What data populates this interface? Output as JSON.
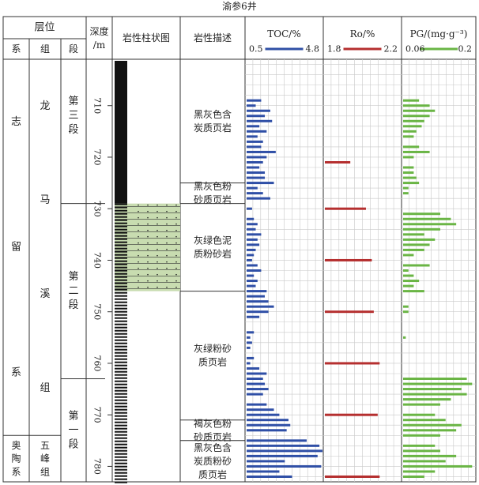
{
  "well_name": "渝参6井",
  "headers": {
    "strata": "层位",
    "system": "系",
    "formation": "组",
    "member": "段",
    "depth": "深度",
    "depth_unit": "/m",
    "lith_column": "岩性柱状图",
    "lith_desc": "岩性描述"
  },
  "strata": {
    "systems": [
      {
        "chars": [
          "志",
          "留",
          "系"
        ],
        "top": 701,
        "bottom": 774
      },
      {
        "chars": [
          "奥",
          "陶",
          "系"
        ],
        "top": 774,
        "bottom": 783
      }
    ],
    "formations": [
      {
        "chars": [
          "龙",
          "马",
          "溪",
          "组"
        ],
        "top": 701,
        "bottom": 774
      },
      {
        "chars": [
          "五",
          "峰",
          "组"
        ],
        "top": 774,
        "bottom": 783
      }
    ],
    "members": [
      {
        "chars": [
          "第",
          "三",
          "段"
        ],
        "top": 701,
        "bottom": 729
      },
      {
        "chars": [
          "第",
          "二",
          "段"
        ],
        "top": 729,
        "bottom": 763
      },
      {
        "chars": [
          "第",
          "一",
          "段"
        ],
        "top": 763,
        "bottom": 783
      }
    ]
  },
  "lithology": [
    {
      "lines": [
        "黑灰色含",
        "炭质页岩"
      ],
      "top": 701,
      "bottom": 725,
      "fill": "#ffffff"
    },
    {
      "lines": [
        "黑灰色粉",
        "砂质页岩"
      ],
      "top": 725,
      "bottom": 729,
      "fill": "#ffffff"
    },
    {
      "lines": [
        "灰绿色泥",
        "质粉砂岩"
      ],
      "top": 729,
      "bottom": 746,
      "fill": "#c8dcb0"
    },
    {
      "lines": [
        "灰绿粉砂",
        "质页岩"
      ],
      "top": 746,
      "bottom": 771,
      "fill": "#ffffff"
    },
    {
      "lines": [
        "褐灰色粉",
        "砂质页岩"
      ],
      "top": 771,
      "bottom": 775,
      "fill": "#ffffff"
    },
    {
      "lines": [
        "黑灰色含",
        "炭质粉砂",
        "质页岩"
      ],
      "top": 775,
      "bottom": 783,
      "fill": "#ffffff"
    }
  ],
  "chart_data": {
    "type": "bar",
    "y_axis": {
      "label": "深度/m",
      "ylim": [
        701,
        783
      ],
      "ticks": [
        710,
        720,
        730,
        740,
        750,
        760,
        770,
        780
      ],
      "inverted": true
    },
    "series": [
      {
        "name": "TOC/%",
        "color": "#2f4fa6",
        "xlim": [
          0.5,
          4.8
        ],
        "points": [
          {
            "depth": 709,
            "value": 1.3
          },
          {
            "depth": 710,
            "value": 1.0
          },
          {
            "depth": 711,
            "value": 1.8
          },
          {
            "depth": 712,
            "value": 1.5
          },
          {
            "depth": 713,
            "value": 1.9
          },
          {
            "depth": 714,
            "value": 1.2
          },
          {
            "depth": 715,
            "value": 1.6
          },
          {
            "depth": 716,
            "value": 1.1
          },
          {
            "depth": 717,
            "value": 1.4
          },
          {
            "depth": 718,
            "value": 1.3
          },
          {
            "depth": 719,
            "value": 2.1
          },
          {
            "depth": 720,
            "value": 1.6
          },
          {
            "depth": 721,
            "value": 1.4
          },
          {
            "depth": 722,
            "value": 1.2
          },
          {
            "depth": 723,
            "value": 1.5
          },
          {
            "depth": 724,
            "value": 1.5
          },
          {
            "depth": 725,
            "value": 2.0
          },
          {
            "depth": 726,
            "value": 1.1
          },
          {
            "depth": 727,
            "value": 1.4
          },
          {
            "depth": 728,
            "value": 1.8
          },
          {
            "depth": 730,
            "value": 0.8
          },
          {
            "depth": 732,
            "value": 0.9
          },
          {
            "depth": 733,
            "value": 1.1
          },
          {
            "depth": 734,
            "value": 1.0
          },
          {
            "depth": 735,
            "value": 1.3
          },
          {
            "depth": 736,
            "value": 1.1
          },
          {
            "depth": 737,
            "value": 1.2
          },
          {
            "depth": 738,
            "value": 1.0
          },
          {
            "depth": 739,
            "value": 0.9
          },
          {
            "depth": 740,
            "value": 0.8
          },
          {
            "depth": 741,
            "value": 1.1
          },
          {
            "depth": 742,
            "value": 1.3
          },
          {
            "depth": 743,
            "value": 0.9
          },
          {
            "depth": 744,
            "value": 1.1
          },
          {
            "depth": 745,
            "value": 1.0
          },
          {
            "depth": 746,
            "value": 1.6
          },
          {
            "depth": 747,
            "value": 1.5
          },
          {
            "depth": 748,
            "value": 1.7
          },
          {
            "depth": 749,
            "value": 2.0
          },
          {
            "depth": 750,
            "value": 1.7
          },
          {
            "depth": 751,
            "value": 1.2
          },
          {
            "depth": 754,
            "value": 0.9
          },
          {
            "depth": 755,
            "value": 0.7
          },
          {
            "depth": 756,
            "value": 0.8
          },
          {
            "depth": 757,
            "value": 0.7
          },
          {
            "depth": 759,
            "value": 0.9
          },
          {
            "depth": 760,
            "value": 0.7
          },
          {
            "depth": 761,
            "value": 1.2
          },
          {
            "depth": 762,
            "value": 1.6
          },
          {
            "depth": 763,
            "value": 1.4
          },
          {
            "depth": 764,
            "value": 1.5
          },
          {
            "depth": 765,
            "value": 1.7
          },
          {
            "depth": 766,
            "value": 1.4
          },
          {
            "depth": 768,
            "value": 1.6
          },
          {
            "depth": 769,
            "value": 2.0
          },
          {
            "depth": 770,
            "value": 2.3
          },
          {
            "depth": 771,
            "value": 2.8
          },
          {
            "depth": 772,
            "value": 2.9
          },
          {
            "depth": 773,
            "value": 2.7
          },
          {
            "depth": 775,
            "value": 3.8
          },
          {
            "depth": 776,
            "value": 4.5
          },
          {
            "depth": 777,
            "value": 4.7
          },
          {
            "depth": 778,
            "value": 4.4
          },
          {
            "depth": 779,
            "value": 2.6
          },
          {
            "depth": 780,
            "value": 4.6
          },
          {
            "depth": 781,
            "value": 2.3
          },
          {
            "depth": 782,
            "value": 3.0
          }
        ]
      },
      {
        "name": "Ro/%",
        "color": "#b52f2f",
        "xlim": [
          1.8,
          2.2
        ],
        "points": [
          {
            "depth": 721,
            "value": 1.93
          },
          {
            "depth": 730,
            "value": 2.01
          },
          {
            "depth": 740,
            "value": 2.04
          },
          {
            "depth": 750,
            "value": 2.05
          },
          {
            "depth": 760,
            "value": 2.08
          },
          {
            "depth": 770,
            "value": 2.07
          },
          {
            "depth": 782,
            "value": 2.08
          }
        ]
      },
      {
        "name": "PG/(mg·g⁻³)",
        "color": "#6ab545",
        "xlim": [
          0.06,
          0.2
        ],
        "points": [
          {
            "depth": 709,
            "value": 0.09
          },
          {
            "depth": 710,
            "value": 0.11
          },
          {
            "depth": 711,
            "value": 0.12
          },
          {
            "depth": 712,
            "value": 0.11
          },
          {
            "depth": 713,
            "value": 0.1
          },
          {
            "depth": 714,
            "value": 0.095
          },
          {
            "depth": 715,
            "value": 0.085
          },
          {
            "depth": 716,
            "value": 0.08
          },
          {
            "depth": 718,
            "value": 0.09
          },
          {
            "depth": 719,
            "value": 0.11
          },
          {
            "depth": 720,
            "value": 0.08
          },
          {
            "depth": 722,
            "value": 0.08
          },
          {
            "depth": 723,
            "value": 0.08
          },
          {
            "depth": 724,
            "value": 0.085
          },
          {
            "depth": 725,
            "value": 0.09
          },
          {
            "depth": 726,
            "value": 0.07
          },
          {
            "depth": 727,
            "value": 0.07
          },
          {
            "depth": 731,
            "value": 0.13
          },
          {
            "depth": 732,
            "value": 0.15
          },
          {
            "depth": 733,
            "value": 0.16
          },
          {
            "depth": 734,
            "value": 0.13
          },
          {
            "depth": 735,
            "value": 0.1
          },
          {
            "depth": 736,
            "value": 0.12
          },
          {
            "depth": 737,
            "value": 0.11
          },
          {
            "depth": 738,
            "value": 0.1
          },
          {
            "depth": 739,
            "value": 0.08
          },
          {
            "depth": 741,
            "value": 0.11
          },
          {
            "depth": 742,
            "value": 0.07
          },
          {
            "depth": 743,
            "value": 0.08
          },
          {
            "depth": 744,
            "value": 0.09
          },
          {
            "depth": 745,
            "value": 0.08
          },
          {
            "depth": 746,
            "value": 0.1
          },
          {
            "depth": 749,
            "value": 0.07
          },
          {
            "depth": 750,
            "value": 0.07
          },
          {
            "depth": 755,
            "value": 0.065
          },
          {
            "depth": 763,
            "value": 0.18
          },
          {
            "depth": 764,
            "value": 0.19
          },
          {
            "depth": 765,
            "value": 0.17
          },
          {
            "depth": 766,
            "value": 0.18
          },
          {
            "depth": 767,
            "value": 0.15
          },
          {
            "depth": 768,
            "value": 0.13
          },
          {
            "depth": 770,
            "value": 0.12
          },
          {
            "depth": 771,
            "value": 0.14
          },
          {
            "depth": 772,
            "value": 0.17
          },
          {
            "depth": 773,
            "value": 0.16
          },
          {
            "depth": 774,
            "value": 0.13
          },
          {
            "depth": 776,
            "value": 0.12
          },
          {
            "depth": 777,
            "value": 0.13
          },
          {
            "depth": 778,
            "value": 0.16
          },
          {
            "depth": 779,
            "value": 0.14
          },
          {
            "depth": 780,
            "value": 0.19
          },
          {
            "depth": 781,
            "value": 0.12
          },
          {
            "depth": 782,
            "value": 0.1
          }
        ]
      }
    ]
  }
}
